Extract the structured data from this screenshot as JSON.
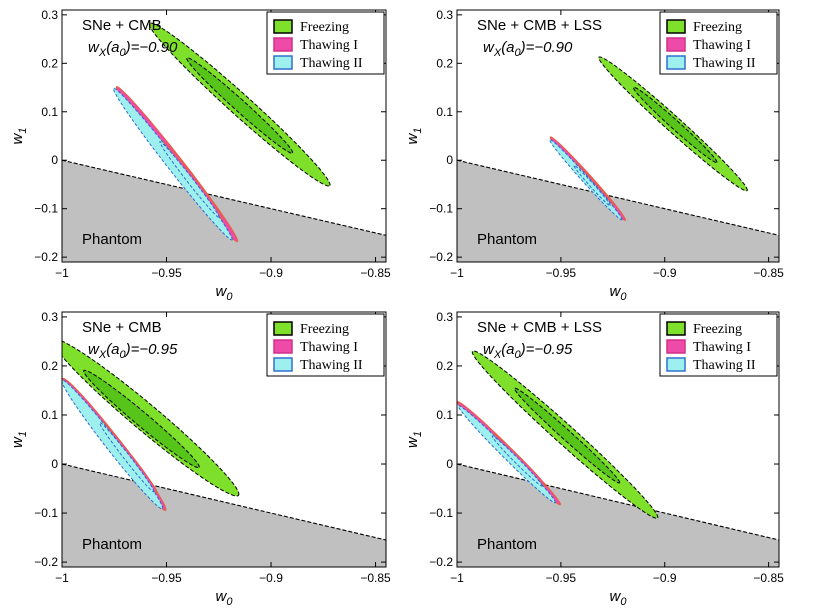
{
  "figure": {
    "description_label": "Four panels of w0-w1 confidence contours"
  },
  "colors": {
    "freezing": "#7ee02a",
    "freezing_inner": "#57c41a",
    "thawing1": "#ee4aa8",
    "thawing2": "#9ef0ee",
    "phantom": "#c0c0c0",
    "contour_line_freezing": "#000000",
    "contour_line_thawing1": "#e8603a",
    "contour_line_thawing2": "#2a6ad0"
  },
  "legend": {
    "entries": [
      {
        "key": "freezing",
        "label": "Freezing"
      },
      {
        "key": "thawing1",
        "label": "Thawing I"
      },
      {
        "key": "thawing2",
        "label": "Thawing II"
      }
    ]
  },
  "chart_data": [
    {
      "type": "contour",
      "title": "SNe + CMB",
      "subtitle": "w_X(a_0)=-0.90",
      "xlabel": "w_0",
      "ylabel": "w_1",
      "xlim": [
        -1.0,
        -0.845
      ],
      "ylim": [
        -0.21,
        0.31
      ],
      "xticks": [
        -1,
        -0.95,
        -0.9,
        -0.85
      ],
      "xtick_labels": [
        "−1",
        "−0.95",
        "−0.9",
        "−0.85"
      ],
      "yticks": [
        -0.2,
        -0.1,
        0,
        0.1,
        0.2,
        0.3
      ],
      "ytick_labels": [
        "−0.2",
        "−0.1",
        "0",
        "0.1",
        "0.2",
        "0.3"
      ],
      "phantom_boundary": [
        [
          -1.0,
          0.0
        ],
        [
          -0.845,
          -0.155
        ]
      ],
      "phantom_label": "Phantom",
      "series": [
        {
          "name": "Freezing",
          "outer": {
            "cx": -0.915,
            "cy": 0.115,
            "a": 0.058,
            "b": 0.022,
            "angle": -42
          },
          "inner": {
            "cx": -0.915,
            "cy": 0.113,
            "a": 0.034,
            "b": 0.012,
            "angle": -42
          }
        },
        {
          "name": "Thawing I",
          "outer": {
            "cx": -0.945,
            "cy": -0.008,
            "a": 0.047,
            "b": 0.013,
            "angle": -52
          },
          "inner": {
            "cx": -0.938,
            "cy": -0.04,
            "a": 0.024,
            "b": 0.007,
            "angle": -52
          }
        },
        {
          "name": "Thawing II",
          "outer": {
            "cx": -0.947,
            "cy": -0.008,
            "a": 0.046,
            "b": 0.012,
            "angle": -52
          },
          "inner": {
            "cx": -0.939,
            "cy": -0.04,
            "a": 0.023,
            "b": 0.006,
            "angle": -52
          }
        }
      ]
    },
    {
      "type": "contour",
      "title": "SNe + CMB + LSS",
      "subtitle": "w_X(a_0)=-0.90",
      "xlabel": "w_0",
      "ylabel": "w_1",
      "xlim": [
        -1.0,
        -0.845
      ],
      "ylim": [
        -0.21,
        0.31
      ],
      "xticks": [
        -1,
        -0.95,
        -0.9,
        -0.85
      ],
      "xtick_labels": [
        "−1",
        "−0.95",
        "−0.9",
        "−0.85"
      ],
      "yticks": [
        -0.2,
        -0.1,
        0,
        0.1,
        0.2,
        0.3
      ],
      "ytick_labels": [
        "−0.2",
        "−0.1",
        "0",
        "0.1",
        "0.2",
        "0.3"
      ],
      "phantom_boundary": [
        [
          -1.0,
          0.0
        ],
        [
          -0.845,
          -0.155
        ]
      ],
      "phantom_label": "Phantom",
      "series": [
        {
          "name": "Freezing",
          "outer": {
            "cx": -0.896,
            "cy": 0.075,
            "a": 0.048,
            "b": 0.016,
            "angle": -42
          },
          "inner": {
            "cx": -0.895,
            "cy": 0.073,
            "a": 0.027,
            "b": 0.009,
            "angle": -42
          }
        },
        {
          "name": "Thawing I",
          "outer": {
            "cx": -0.937,
            "cy": -0.038,
            "a": 0.027,
            "b": 0.008,
            "angle": -48
          },
          "inner": {
            "cx": -0.934,
            "cy": -0.05,
            "a": 0.014,
            "b": 0.004,
            "angle": -48
          }
        },
        {
          "name": "Thawing II",
          "outer": {
            "cx": -0.938,
            "cy": -0.04,
            "a": 0.026,
            "b": 0.007,
            "angle": -48
          },
          "inner": {
            "cx": -0.935,
            "cy": -0.052,
            "a": 0.013,
            "b": 0.004,
            "angle": -48
          }
        }
      ]
    },
    {
      "type": "contour",
      "title": "SNe + CMB",
      "subtitle": "w_X(a_0)=-0.95",
      "xlabel": "w_0",
      "ylabel": "w_1",
      "xlim": [
        -1.0,
        -0.845
      ],
      "ylim": [
        -0.21,
        0.31
      ],
      "xticks": [
        -1,
        -0.95,
        -0.9,
        -0.85
      ],
      "xtick_labels": [
        "−1",
        "−0.95",
        "−0.9",
        "−0.85"
      ],
      "yticks": [
        -0.2,
        -0.1,
        0,
        0.1,
        0.2,
        0.3
      ],
      "ytick_labels": [
        "−0.2",
        "−0.1",
        "0",
        "0.1",
        "0.2",
        "0.3"
      ],
      "phantom_boundary": [
        [
          -1.0,
          0.0
        ],
        [
          -0.845,
          -0.155
        ]
      ],
      "phantom_label": "Phantom",
      "series": [
        {
          "name": "Freezing",
          "outer": {
            "cx": -0.96,
            "cy": 0.095,
            "a": 0.058,
            "b": 0.027,
            "angle": -40
          },
          "inner": {
            "cx": -0.962,
            "cy": 0.092,
            "a": 0.036,
            "b": 0.014,
            "angle": -40
          }
        },
        {
          "name": "Thawing I",
          "outer": {
            "cx": -0.975,
            "cy": 0.04,
            "a": 0.04,
            "b": 0.014,
            "angle": -52
          },
          "inner": {
            "cx": -0.968,
            "cy": 0.015,
            "a": 0.022,
            "b": 0.006,
            "angle": -52
          }
        },
        {
          "name": "Thawing II",
          "outer": {
            "cx": -0.976,
            "cy": 0.04,
            "a": 0.039,
            "b": 0.013,
            "angle": -52
          },
          "inner": {
            "cx": -0.969,
            "cy": 0.014,
            "a": 0.021,
            "b": 0.006,
            "angle": -52
          }
        }
      ]
    },
    {
      "type": "contour",
      "title": "SNe + CMB + LSS",
      "subtitle": "w_X(a_0)=-0.95",
      "xlabel": "w_0",
      "ylabel": "w_1",
      "xlim": [
        -1.0,
        -0.845
      ],
      "ylim": [
        -0.21,
        0.31
      ],
      "xticks": [
        -1,
        -0.95,
        -0.9,
        -0.85
      ],
      "xtick_labels": [
        "−1",
        "−0.95",
        "−0.9",
        "−0.85"
      ],
      "yticks": [
        -0.2,
        -0.1,
        0,
        0.1,
        0.2,
        0.3
      ],
      "ytick_labels": [
        "−0.2",
        "−0.1",
        "0",
        "0.1",
        "0.2",
        "0.3"
      ],
      "phantom_boundary": [
        [
          -1.0,
          0.0
        ],
        [
          -0.845,
          -0.155
        ]
      ],
      "phantom_label": "Phantom",
      "series": [
        {
          "name": "Freezing",
          "outer": {
            "cx": -0.948,
            "cy": 0.06,
            "a": 0.06,
            "b": 0.02,
            "angle": -42
          },
          "inner": {
            "cx": -0.947,
            "cy": 0.058,
            "a": 0.034,
            "b": 0.01,
            "angle": -42
          }
        },
        {
          "name": "Thawing I",
          "outer": {
            "cx": -0.975,
            "cy": 0.022,
            "a": 0.035,
            "b": 0.01,
            "angle": -45
          },
          "inner": {
            "cx": -0.97,
            "cy": 0.008,
            "a": 0.018,
            "b": 0.005,
            "angle": -45
          }
        },
        {
          "name": "Thawing II",
          "outer": {
            "cx": -0.976,
            "cy": 0.02,
            "a": 0.033,
            "b": 0.009,
            "angle": -45
          },
          "inner": {
            "cx": -0.971,
            "cy": 0.006,
            "a": 0.017,
            "b": 0.005,
            "angle": -45
          }
        }
      ]
    }
  ]
}
